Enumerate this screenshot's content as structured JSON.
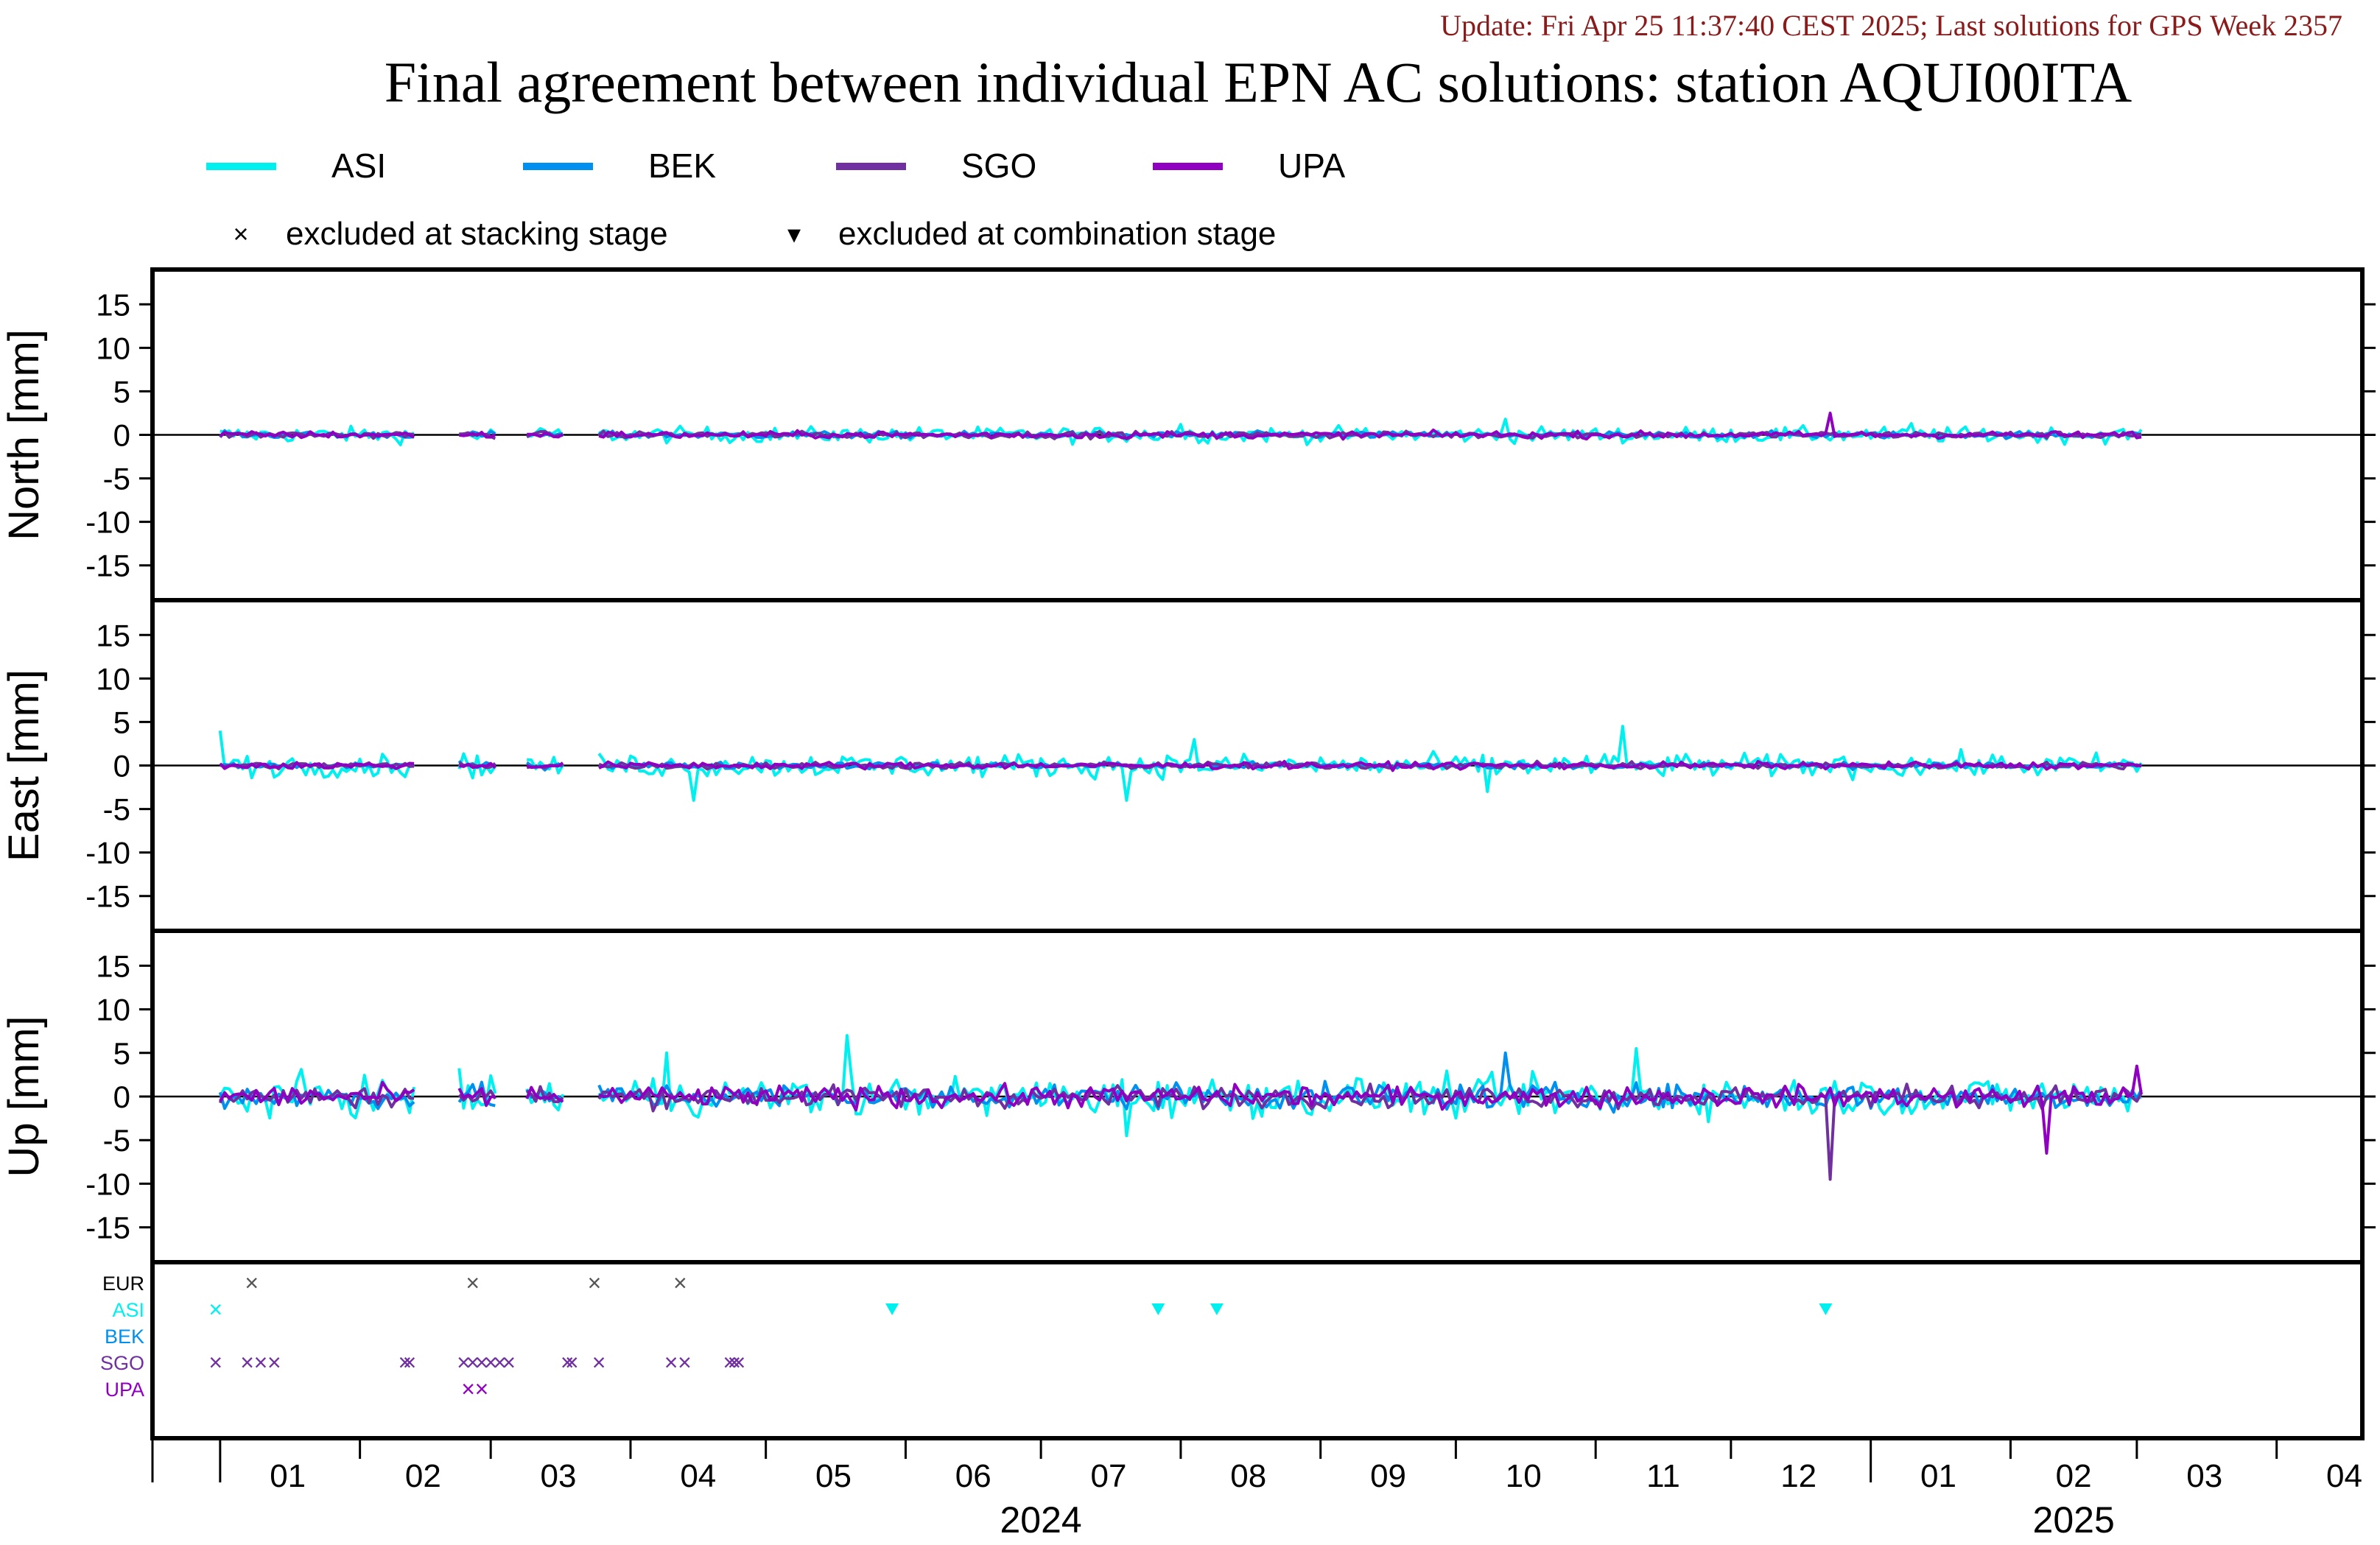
{
  "header": {
    "update_text": "Update: Fri Apr 25 11:37:40 CEST 2025; Last solutions for GPS Week 2357",
    "update_color": "#8b1a1a"
  },
  "chart_data": {
    "type": "line",
    "title": "Final agreement between individual EPN AC solutions: station AQUI00ITA",
    "legend": {
      "placement": "top",
      "entries": [
        {
          "name": "ASI",
          "color": "#00f0f0"
        },
        {
          "name": "BEK",
          "color": "#0090f0"
        },
        {
          "name": "SGO",
          "color": "#7030a0"
        },
        {
          "name": "UPA",
          "color": "#9000c0"
        }
      ],
      "markers": [
        {
          "symbol": "×",
          "label": "excluded at stacking stage"
        },
        {
          "symbol": "▾",
          "label": "excluded at combination stage"
        }
      ]
    },
    "x": {
      "start": "2023-12-17",
      "end": "2025-04-20",
      "month_ticks": [
        "01",
        "02",
        "03",
        "04",
        "05",
        "06",
        "07",
        "08",
        "09",
        "10",
        "11",
        "12",
        "01",
        "02",
        "03",
        "04"
      ],
      "year_labels": [
        {
          "label": "2024",
          "at": "2024-07-01"
        },
        {
          "label": "2025",
          "at": "2025-02-15"
        }
      ]
    },
    "panels": [
      {
        "ylabel": "North [mm]",
        "ylim": [
          -19,
          19
        ],
        "yticks": [
          15,
          10,
          5,
          0,
          -5,
          -10,
          -15
        ],
        "grid": false,
        "amplitude": {
          "ASI": 0.8,
          "BEK": 0.35,
          "SGO": 0.35,
          "UPA": 0.35
        },
        "spikes": [
          {
            "series": "ASI",
            "date": "2024-08-01",
            "value": 1.2
          },
          {
            "series": "ASI",
            "date": "2024-10-12",
            "value": 1.8
          },
          {
            "series": "UPA",
            "date": "2024-12-23",
            "value": 2.5
          },
          {
            "series": "ASI",
            "date": "2025-01-10",
            "value": 1.3
          }
        ]
      },
      {
        "ylabel": "East [mm]",
        "ylim": [
          -19,
          19
        ],
        "yticks": [
          15,
          10,
          5,
          0,
          -5,
          -10,
          -15
        ],
        "grid": false,
        "amplitude": {
          "ASI": 1.2,
          "BEK": 0.35,
          "SGO": 0.35,
          "UPA": 0.35
        },
        "spikes": [
          {
            "series": "ASI",
            "date": "2024-01-01",
            "value": 4.0
          },
          {
            "series": "ASI",
            "date": "2024-03-20",
            "value": -3.5
          },
          {
            "series": "ASI",
            "date": "2024-04-15",
            "value": -4.0
          },
          {
            "series": "ASI",
            "date": "2024-07-20",
            "value": -4.0
          },
          {
            "series": "ASI",
            "date": "2024-08-04",
            "value": 3.0
          },
          {
            "series": "ASI",
            "date": "2024-10-08",
            "value": -3.0
          },
          {
            "series": "ASI",
            "date": "2024-11-07",
            "value": 4.5
          },
          {
            "series": "ASI",
            "date": "2025-03-05",
            "value": -2.0
          }
        ]
      },
      {
        "ylabel": "Up [mm]",
        "ylim": [
          -19,
          19
        ],
        "yticks": [
          15,
          10,
          5,
          0,
          -5,
          -10,
          -15
        ],
        "grid": false,
        "amplitude": {
          "ASI": 2.0,
          "BEK": 1.3,
          "SGO": 1.1,
          "UPA": 1.1
        },
        "spikes": [
          {
            "series": "ASI",
            "date": "2024-04-09",
            "value": 5.0
          },
          {
            "series": "ASI",
            "date": "2024-05-19",
            "value": 7.0
          },
          {
            "series": "ASI",
            "date": "2024-07-20",
            "value": -4.5
          },
          {
            "series": "BEK",
            "date": "2024-10-12",
            "value": 5.0
          },
          {
            "series": "ASI",
            "date": "2024-11-10",
            "value": 5.5
          },
          {
            "series": "SGO",
            "date": "2024-12-23",
            "value": -9.5
          },
          {
            "series": "UPA",
            "date": "2025-02-09",
            "value": -6.5
          },
          {
            "series": "UPA",
            "date": "2025-03-01",
            "value": 3.5
          }
        ]
      }
    ],
    "data_gaps": [
      [
        "2024-02-14",
        "2024-02-22"
      ],
      [
        "2024-03-03",
        "2024-03-08"
      ],
      [
        "2024-03-18",
        "2024-03-24"
      ]
    ],
    "exclusion_panel": {
      "rows": [
        {
          "name": "EUR",
          "color": "#000000"
        },
        {
          "name": "ASI",
          "color": "#00f0f0"
        },
        {
          "name": "BEK",
          "color": "#0090f0"
        },
        {
          "name": "SGO",
          "color": "#7030a0"
        },
        {
          "name": "UPA",
          "color": "#9000c0"
        }
      ],
      "stacking_excluded": [
        {
          "row": "EUR",
          "dates": [
            "2024-01-08",
            "2024-02-26",
            "2024-03-24",
            "2024-04-12"
          ]
        },
        {
          "row": "ASI",
          "dates": [
            "2023-12-31"
          ]
        },
        {
          "row": "SGO",
          "dates": [
            "2023-12-31",
            "2024-01-07",
            "2024-01-10",
            "2024-01-13",
            "2024-02-11",
            "2024-02-12",
            "2024-02-24",
            "2024-02-26",
            "2024-02-28",
            "2024-03-01",
            "2024-03-03",
            "2024-03-05",
            "2024-03-18",
            "2024-03-19",
            "2024-03-25",
            "2024-04-10",
            "2024-04-13",
            "2024-04-23",
            "2024-04-24",
            "2024-04-25"
          ]
        },
        {
          "row": "UPA",
          "dates": [
            "2024-02-25",
            "2024-02-28"
          ]
        }
      ],
      "combination_excluded": [
        {
          "row": "ASI",
          "dates": [
            "2024-05-29",
            "2024-07-27",
            "2024-08-09",
            "2024-12-22"
          ]
        }
      ]
    }
  }
}
